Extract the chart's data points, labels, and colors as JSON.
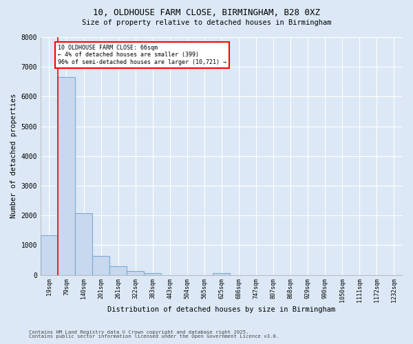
{
  "title_line1": "10, OLDHOUSE FARM CLOSE, BIRMINGHAM, B28 0XZ",
  "title_line2": "Size of property relative to detached houses in Birmingham",
  "xlabel": "Distribution of detached houses by size in Birmingham",
  "ylabel": "Number of detached properties",
  "bar_labels": [
    "19sqm",
    "79sqm",
    "140sqm",
    "201sqm",
    "261sqm",
    "322sqm",
    "383sqm",
    "443sqm",
    "504sqm",
    "565sqm",
    "625sqm",
    "686sqm",
    "747sqm",
    "807sqm",
    "868sqm",
    "929sqm",
    "990sqm",
    "1050sqm",
    "1111sqm",
    "1172sqm",
    "1232sqm"
  ],
  "bar_values": [
    1330,
    6650,
    2080,
    640,
    300,
    130,
    70,
    0,
    0,
    0,
    60,
    0,
    0,
    0,
    0,
    0,
    0,
    0,
    0,
    0,
    0
  ],
  "bar_color": "#c8d8ee",
  "bar_edge_color": "#7aaad0",
  "annotation_text": "10 OLDHOUSE FARM CLOSE: 66sqm\n← 4% of detached houses are smaller (399)\n96% of semi-detached houses are larger (10,721) →",
  "annotation_box_color": "white",
  "annotation_box_edge_color": "red",
  "vline_x": 0.5,
  "ylim": [
    0,
    8000
  ],
  "yticks": [
    0,
    1000,
    2000,
    3000,
    4000,
    5000,
    6000,
    7000,
    8000
  ],
  "footnote": "Contains HM Land Registry data © Crown copyright and database right 2025.\nContains public sector information licensed under the Open Government Licence v3.0.",
  "bg_color": "#dce8f5",
  "grid_color": "#ffffff",
  "font_family": "monospace"
}
